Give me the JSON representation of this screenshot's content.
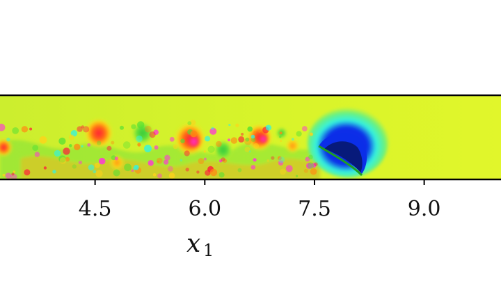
{
  "chart_data": {
    "type": "heatmap",
    "title": "",
    "xlabel": "x",
    "xlabel_subscript": "1",
    "ylabel": "",
    "xlim": [
      3.2,
      10.05
    ],
    "xticks": [
      4.5,
      6.0,
      7.5,
      9.0
    ],
    "xtick_labels": [
      "4.5",
      "6.0",
      "7.5",
      "9.0"
    ],
    "colormap": "hsv",
    "field_colors": {
      "background": "#ddf52a",
      "warm_1": "#ffd21a",
      "warm_2": "#ff8a12",
      "hot": "#ff1a3a",
      "magenta": "#ff36d6",
      "green": "#4fe034",
      "cyan": "#33f3e0",
      "blue": "#0b2ee8",
      "navy": "#071a7a"
    },
    "features": [
      {
        "kind": "vortex",
        "x": 3.25,
        "y": 0.38,
        "r": 0.12,
        "color": "hot"
      },
      {
        "kind": "vortex",
        "x": 4.55,
        "y": 0.55,
        "r": 0.2,
        "color": "hot"
      },
      {
        "kind": "vortex",
        "x": 4.8,
        "y": 0.2,
        "r": 0.1,
        "color": "warm_2"
      },
      {
        "kind": "vortex",
        "x": 5.15,
        "y": 0.55,
        "r": 0.16,
        "color": "green"
      },
      {
        "kind": "vortex",
        "x": 5.8,
        "y": 0.48,
        "r": 0.22,
        "color": "hot"
      },
      {
        "kind": "vortex",
        "x": 5.85,
        "y": 0.45,
        "r": 0.08,
        "color": "magenta"
      },
      {
        "kind": "vortex",
        "x": 6.25,
        "y": 0.35,
        "r": 0.14,
        "color": "green"
      },
      {
        "kind": "vortex",
        "x": 6.75,
        "y": 0.5,
        "r": 0.18,
        "color": "hot"
      },
      {
        "kind": "vortex",
        "x": 6.8,
        "y": 0.48,
        "r": 0.06,
        "color": "magenta"
      },
      {
        "kind": "vortex",
        "x": 7.2,
        "y": 0.4,
        "r": 0.1,
        "color": "warm_2"
      },
      {
        "kind": "vortex",
        "x": 7.05,
        "y": 0.55,
        "r": 0.08,
        "color": "green"
      }
    ]
  }
}
